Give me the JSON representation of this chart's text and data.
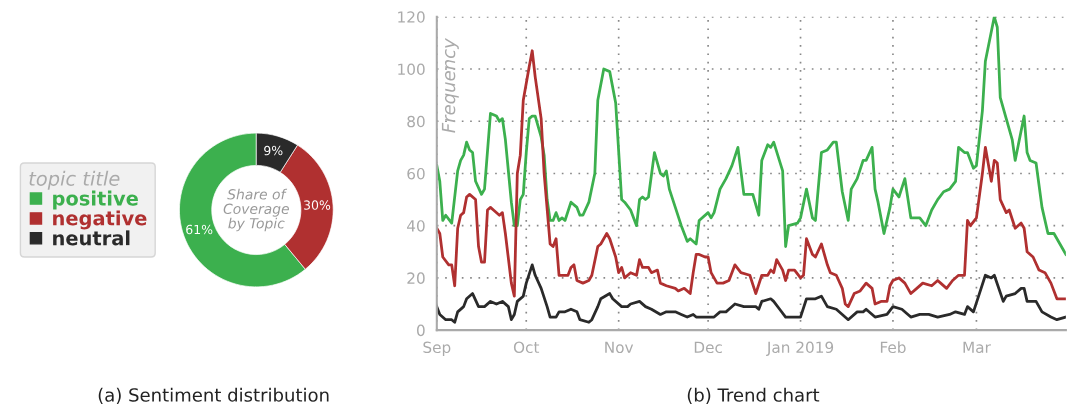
{
  "chart_data": [
    {
      "type": "donut",
      "title": "(a) Sentiment distribution",
      "categories": [
        "positive",
        "negative",
        "neutral"
      ],
      "values": [
        61,
        30,
        9
      ],
      "colors": [
        "#3cb04e",
        "#b03030",
        "#2a2a2a"
      ],
      "value_labels": [
        "61%",
        "30%",
        "9%"
      ],
      "legend_title": "topic title",
      "legend": "left",
      "annotations": [
        "Share of\nCoverage\nby Topic"
      ]
    },
    {
      "type": "line",
      "title": "(b) Trend chart",
      "ylabel": "Frequency",
      "xlim": [
        "2018-09-01",
        "2019-03-31"
      ],
      "ylim": [
        0,
        120
      ],
      "yticks": [
        0,
        20,
        40,
        60,
        80,
        100,
        120
      ],
      "xticks": [
        {
          "value": "2018-09-01",
          "label": "Sep"
        },
        {
          "value": "2018-10-01",
          "label": "Oct"
        },
        {
          "value": "2018-11-01",
          "label": "Nov"
        },
        {
          "value": "2018-12-01",
          "label": "Dec"
        },
        {
          "value": "2019-01-01",
          "label": "Jan 2019"
        },
        {
          "value": "2019-02-01",
          "label": "Feb"
        },
        {
          "value": "2019-03-01",
          "label": "Mar"
        }
      ],
      "grid": true,
      "legend": false,
      "marker": "none",
      "line_style": "solid",
      "series": [
        {
          "color": "#3cb04e",
          "x": [
            "2018-09-01",
            "2018-09-02",
            "2018-09-03",
            "2018-09-04",
            "2018-09-06",
            "2018-09-08",
            "2018-09-09",
            "2018-09-10",
            "2018-09-11",
            "2018-09-12",
            "2018-09-13",
            "2018-09-14",
            "2018-09-16",
            "2018-09-17",
            "2018-09-19",
            "2018-09-21",
            "2018-09-22",
            "2018-09-23",
            "2018-09-24",
            "2018-09-26",
            "2018-09-27",
            "2018-09-28",
            "2018-09-29",
            "2018-09-30",
            "2018-10-01",
            "2018-10-02",
            "2018-10-03",
            "2018-10-04",
            "2018-10-06",
            "2018-10-07",
            "2018-10-08",
            "2018-10-09",
            "2018-10-10",
            "2018-10-11",
            "2018-10-12",
            "2018-10-13",
            "2018-10-14",
            "2018-10-16",
            "2018-10-18",
            "2018-10-19",
            "2018-10-20",
            "2018-10-22",
            "2018-10-24",
            "2018-10-25",
            "2018-10-27",
            "2018-10-29",
            "2018-10-31",
            "2018-11-02",
            "2018-11-03",
            "2018-11-05",
            "2018-11-07",
            "2018-11-08",
            "2018-11-09",
            "2018-11-10",
            "2018-11-11",
            "2018-11-13",
            "2018-11-15",
            "2018-11-16",
            "2018-11-17",
            "2018-11-18",
            "2018-11-22",
            "2018-11-24",
            "2018-11-25",
            "2018-11-27",
            "2018-11-28",
            "2018-12-01",
            "2018-12-02",
            "2018-12-03",
            "2018-12-05",
            "2018-12-07",
            "2018-12-09",
            "2018-12-11",
            "2018-12-13",
            "2018-12-16",
            "2018-12-18",
            "2018-12-19",
            "2018-12-21",
            "2018-12-22",
            "2018-12-23",
            "2018-12-26",
            "2018-12-27",
            "2018-12-28",
            "2018-12-31",
            "2019-01-01",
            "2019-01-03",
            "2019-01-05",
            "2019-01-06",
            "2019-01-08",
            "2019-01-10",
            "2019-01-12",
            "2019-01-13",
            "2019-01-15",
            "2019-01-17",
            "2019-01-18",
            "2019-01-20",
            "2019-01-22",
            "2019-01-23",
            "2019-01-25",
            "2019-01-26",
            "2019-01-27",
            "2019-01-29",
            "2019-01-31",
            "2019-02-01",
            "2019-02-03",
            "2019-02-05",
            "2019-02-07",
            "2019-02-10",
            "2019-02-12",
            "2019-02-14",
            "2019-02-16",
            "2019-02-18",
            "2019-02-20",
            "2019-02-22",
            "2019-02-23",
            "2019-02-25",
            "2019-02-26",
            "2019-02-28",
            "2019-03-01",
            "2019-03-03",
            "2019-03-04",
            "2019-03-07",
            "2019-03-08",
            "2019-03-09",
            "2019-03-11",
            "2019-03-13",
            "2019-03-14",
            "2019-03-17",
            "2019-03-18",
            "2019-03-19",
            "2019-03-21",
            "2019-03-23",
            "2019-03-25",
            "2019-03-27",
            "2019-03-31"
          ],
          "values": [
            63,
            57,
            42,
            44,
            41,
            61,
            65,
            67,
            72,
            69,
            68,
            57,
            52,
            54,
            83,
            82,
            80,
            81,
            73,
            49,
            40,
            40,
            50,
            52,
            68,
            81,
            82,
            82,
            74,
            67,
            50,
            42,
            42,
            45,
            42,
            43,
            42,
            49,
            47,
            44,
            44,
            49,
            60,
            88,
            100,
            99,
            87,
            50,
            49,
            46,
            40,
            50,
            51,
            50,
            51,
            68,
            60,
            59,
            61,
            54,
            40,
            34,
            35,
            33,
            42,
            45,
            43,
            45,
            54,
            58,
            63,
            70,
            52,
            52,
            44,
            65,
            71,
            70,
            72,
            61,
            32,
            40,
            41,
            43,
            54,
            43,
            42,
            68,
            69,
            72,
            72,
            53,
            42,
            54,
            58,
            65,
            65,
            70,
            54,
            49,
            37,
            47,
            54,
            51,
            58,
            43,
            43,
            40,
            46,
            50,
            53,
            54,
            57,
            70,
            68,
            68,
            62,
            63,
            84,
            103,
            120,
            116,
            89,
            81,
            73,
            65,
            82,
            68,
            65,
            64,
            47,
            37,
            37,
            29
          ]
        },
        {
          "color": "#b03030",
          "x": [
            "2018-09-01",
            "2018-09-02",
            "2018-09-03",
            "2018-09-05",
            "2018-09-06",
            "2018-09-07",
            "2018-09-08",
            "2018-09-09",
            "2018-09-10",
            "2018-09-11",
            "2018-09-12",
            "2018-09-14",
            "2018-09-15",
            "2018-09-16",
            "2018-09-17",
            "2018-09-18",
            "2018-09-19",
            "2018-09-20",
            "2018-09-22",
            "2018-09-23",
            "2018-09-24",
            "2018-09-26",
            "2018-09-27",
            "2018-09-28",
            "2018-09-29",
            "2018-09-30",
            "2018-10-02",
            "2018-10-03",
            "2018-10-04",
            "2018-10-06",
            "2018-10-07",
            "2018-10-09",
            "2018-10-10",
            "2018-10-11",
            "2018-10-12",
            "2018-10-14",
            "2018-10-15",
            "2018-10-16",
            "2018-10-17",
            "2018-10-18",
            "2018-10-20",
            "2018-10-22",
            "2018-10-23",
            "2018-10-25",
            "2018-10-26",
            "2018-10-28",
            "2018-10-29",
            "2018-10-31",
            "2018-11-01",
            "2018-11-02",
            "2018-11-03",
            "2018-11-05",
            "2018-11-07",
            "2018-11-08",
            "2018-11-09",
            "2018-11-11",
            "2018-11-12",
            "2018-11-14",
            "2018-11-15",
            "2018-11-17",
            "2018-11-20",
            "2018-11-21",
            "2018-11-23",
            "2018-11-25",
            "2018-11-26",
            "2018-11-27",
            "2018-11-28",
            "2018-11-30",
            "2018-12-01",
            "2018-12-02",
            "2018-12-04",
            "2018-12-06",
            "2018-12-08",
            "2018-12-10",
            "2018-12-12",
            "2018-12-15",
            "2018-12-17",
            "2018-12-19",
            "2018-12-21",
            "2018-12-22",
            "2018-12-23",
            "2018-12-24",
            "2018-12-26",
            "2018-12-27",
            "2018-12-28",
            "2018-12-30",
            "2019-01-01",
            "2019-01-02",
            "2019-01-03",
            "2019-01-05",
            "2019-01-06",
            "2019-01-08",
            "2019-01-10",
            "2019-01-11",
            "2019-01-13",
            "2019-01-15",
            "2019-01-16",
            "2019-01-17",
            "2019-01-19",
            "2019-01-21",
            "2019-01-23",
            "2019-01-25",
            "2019-01-26",
            "2019-01-28",
            "2019-01-30",
            "2019-01-31",
            "2019-02-01",
            "2019-02-03",
            "2019-02-05",
            "2019-02-07",
            "2019-02-09",
            "2019-02-11",
            "2019-02-14",
            "2019-02-16",
            "2019-02-17",
            "2019-02-19",
            "2019-02-21",
            "2019-02-23",
            "2019-02-25",
            "2019-02-26",
            "2019-02-27",
            "2019-03-01",
            "2019-03-03",
            "2019-03-04",
            "2019-03-06",
            "2019-03-07",
            "2019-03-08",
            "2019-03-09",
            "2019-03-11",
            "2019-03-12",
            "2019-03-14",
            "2019-03-16",
            "2019-03-17",
            "2019-03-18",
            "2019-03-20",
            "2019-03-22",
            "2019-03-24",
            "2019-03-26",
            "2019-03-28",
            "2019-03-31"
          ],
          "values": [
            39,
            37,
            28,
            25,
            25,
            17,
            39,
            44,
            45,
            51,
            52,
            50,
            32,
            26,
            26,
            46,
            47,
            46,
            44,
            45,
            37,
            18,
            13,
            60,
            67,
            88,
            101,
            107,
            97,
            81,
            60,
            33,
            32,
            35,
            21,
            21,
            21,
            24,
            25,
            19,
            18,
            19,
            21,
            32,
            33,
            37,
            35,
            28,
            22,
            24,
            20,
            22,
            21,
            27,
            24,
            24,
            22,
            23,
            18,
            17,
            16,
            15,
            16,
            14,
            22,
            29,
            29,
            28,
            28,
            22,
            18,
            18,
            19,
            25,
            22,
            21,
            14,
            21,
            21,
            23,
            22,
            27,
            23,
            19,
            23,
            23,
            20,
            21,
            35,
            29,
            28,
            33,
            25,
            22,
            21,
            16,
            10,
            9,
            14,
            15,
            18,
            16,
            10,
            11,
            11,
            17,
            19,
            20,
            18,
            14,
            16,
            18,
            17,
            19,
            18,
            16,
            19,
            21,
            21,
            42,
            40,
            43,
            60,
            70,
            57,
            65,
            64,
            50,
            45,
            46,
            39,
            41,
            39,
            30,
            28,
            23,
            22,
            18,
            12,
            12
          ]
        },
        {
          "color": "#2a2a2a",
          "x": [
            "2018-09-01",
            "2018-09-02",
            "2018-09-04",
            "2018-09-06",
            "2018-09-07",
            "2018-09-08",
            "2018-09-10",
            "2018-09-11",
            "2018-09-13",
            "2018-09-15",
            "2018-09-17",
            "2018-09-19",
            "2018-09-21",
            "2018-09-23",
            "2018-09-25",
            "2018-09-26",
            "2018-09-27",
            "2018-09-28",
            "2018-09-30",
            "2018-10-01",
            "2018-10-03",
            "2018-10-04",
            "2018-10-06",
            "2018-10-08",
            "2018-10-09",
            "2018-10-11",
            "2018-10-12",
            "2018-10-14",
            "2018-10-16",
            "2018-10-18",
            "2018-10-19",
            "2018-10-22",
            "2018-10-23",
            "2018-10-25",
            "2018-10-26",
            "2018-10-29",
            "2018-10-30",
            "2018-11-02",
            "2018-11-04",
            "2018-11-05",
            "2018-11-08",
            "2018-11-10",
            "2018-11-12",
            "2018-11-15",
            "2018-11-17",
            "2018-11-20",
            "2018-11-22",
            "2018-11-24",
            "2018-11-26",
            "2018-11-27",
            "2018-11-30",
            "2018-12-03",
            "2018-12-05",
            "2018-12-07",
            "2018-12-08",
            "2018-12-10",
            "2018-12-13",
            "2018-12-15",
            "2018-12-17",
            "2018-12-18",
            "2018-12-19",
            "2018-12-22",
            "2018-12-23",
            "2018-12-25",
            "2018-12-27",
            "2018-12-29",
            "2019-01-01",
            "2019-01-03",
            "2019-01-06",
            "2019-01-08",
            "2019-01-10",
            "2019-01-13",
            "2019-01-15",
            "2019-01-17",
            "2019-01-20",
            "2019-01-22",
            "2019-01-23",
            "2019-01-26",
            "2019-01-30",
            "2019-02-01",
            "2019-02-04",
            "2019-02-07",
            "2019-02-10",
            "2019-02-13",
            "2019-02-16",
            "2019-02-20",
            "2019-02-22",
            "2019-02-25",
            "2019-02-26",
            "2019-02-28",
            "2019-03-02",
            "2019-03-04",
            "2019-03-06",
            "2019-03-07",
            "2019-03-10",
            "2019-03-11",
            "2019-03-14",
            "2019-03-16",
            "2019-03-17",
            "2019-03-18",
            "2019-03-21",
            "2019-03-23",
            "2019-03-26",
            "2019-03-28",
            "2019-03-31"
          ],
          "values": [
            9,
            6,
            4,
            4,
            3,
            7,
            9,
            12,
            14,
            9,
            9,
            11,
            10,
            11,
            9,
            4,
            6,
            11,
            13,
            18,
            25,
            21,
            16,
            9,
            5,
            5,
            7,
            7,
            8,
            7,
            4,
            3,
            4,
            9,
            12,
            14,
            12,
            9,
            9,
            10,
            11,
            9,
            8,
            6,
            7,
            7,
            6,
            5,
            6,
            5,
            5,
            5,
            7,
            7,
            8,
            10,
            9,
            9,
            9,
            8,
            11,
            12,
            11,
            8,
            5,
            5,
            5,
            12,
            12,
            13,
            9,
            8,
            6,
            4,
            7,
            7,
            8,
            5,
            6,
            9,
            8,
            5,
            6,
            6,
            5,
            6,
            7,
            6,
            9,
            7,
            14,
            21,
            20,
            21,
            11,
            13,
            14,
            16,
            16,
            11,
            11,
            7,
            5,
            4,
            5
          ]
        }
      ]
    }
  ]
}
